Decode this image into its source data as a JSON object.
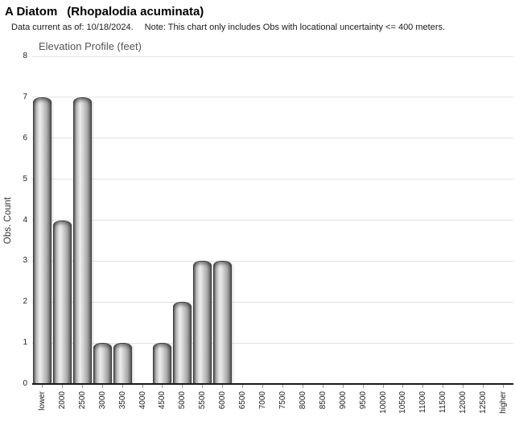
{
  "header": {
    "common_name": "A Diatom",
    "scientific_name": "(Rhopalodia acuminata)",
    "data_current": "Data current as of: 10/18/2024.",
    "note": "Note: This chart only includes Obs with locational uncertainty <= 400 meters."
  },
  "chart_data": {
    "type": "bar",
    "title": "Elevation Profile (feet)",
    "xlabel": "",
    "ylabel": "Obs. Count",
    "ylim": [
      0,
      8
    ],
    "yticks": [
      0,
      1,
      2,
      3,
      4,
      5,
      6,
      7,
      8
    ],
    "grid": "horizontal-only",
    "legend": "none",
    "categories": [
      "lower",
      "2000",
      "2500",
      "3000",
      "3500",
      "4000",
      "4500",
      "5000",
      "5500",
      "6000",
      "6500",
      "7000",
      "7500",
      "8000",
      "8500",
      "9000",
      "9500",
      "10000",
      "10500",
      "11000",
      "11500",
      "12000",
      "12500",
      "higher"
    ],
    "values": [
      7,
      4,
      7,
      1,
      1,
      0,
      1,
      2,
      3,
      3,
      0,
      0,
      0,
      0,
      0,
      0,
      0,
      0,
      0,
      0,
      0,
      0,
      0,
      0
    ],
    "colors": {
      "bar_fill_highlight": "#ededed",
      "bar_fill_shadow": "#5f5f5f",
      "bar_border": "#3d3d3d",
      "gridline": "#e3e3e3",
      "axis_line": "#1a1a1a",
      "chart_title_text": "#555555",
      "tick_label_text": "#222222",
      "background": "#ffffff"
    }
  }
}
